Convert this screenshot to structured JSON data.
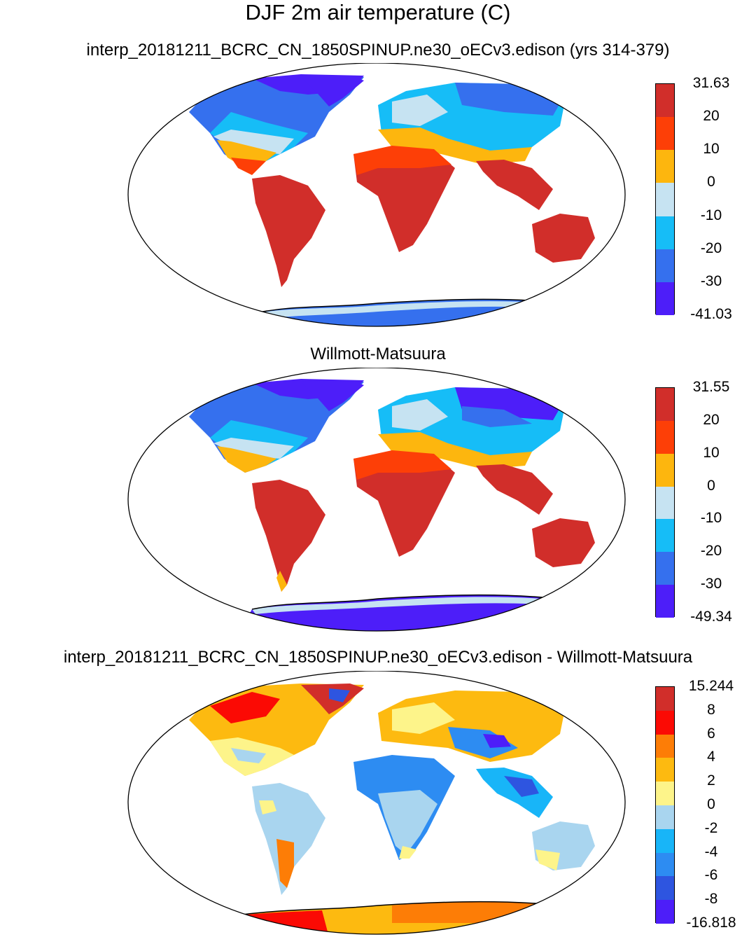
{
  "title": "DJF 2m air temperature (C)",
  "panels": [
    {
      "id": "model",
      "title": "interp_20181211_BCRC_CN_1850SPINUP.ne30_oECv3.edison (yrs 314-379)",
      "colorbar": {
        "labels": [
          "31.63",
          "20",
          "10",
          "0",
          "-10",
          "-20",
          "-30",
          "-41.03"
        ],
        "colors": [
          "#d12e2a",
          "#fd3f07",
          "#fdb60e",
          "#c6e3f2",
          "#16bdf7",
          "#3570ee",
          "#4d1ef9"
        ]
      }
    },
    {
      "id": "obs",
      "title": "Willmott-Matsuura",
      "colorbar": {
        "labels": [
          "31.55",
          "20",
          "10",
          "0",
          "-10",
          "-20",
          "-30",
          "-49.34"
        ],
        "colors": [
          "#d12e2a",
          "#fd3f07",
          "#fdb60e",
          "#c6e3f2",
          "#16bdf7",
          "#3570ee",
          "#4d1ef9"
        ]
      }
    },
    {
      "id": "diff",
      "title": "interp_20181211_BCRC_CN_1850SPINUP.ne30_oECv3.edison - Willmott-Matsuura",
      "colorbar": {
        "labels": [
          "15.244",
          "8",
          "6",
          "4",
          "2",
          "0",
          "-2",
          "-4",
          "-6",
          "-8",
          "-16.818"
        ],
        "colors": [
          "#d12e2a",
          "#fb0a04",
          "#fd7d06",
          "#fdba10",
          "#fdf48a",
          "#a9d5ef",
          "#18b5f8",
          "#2d8cf2",
          "#2e55e0",
          "#4d1ef9"
        ]
      }
    }
  ]
}
